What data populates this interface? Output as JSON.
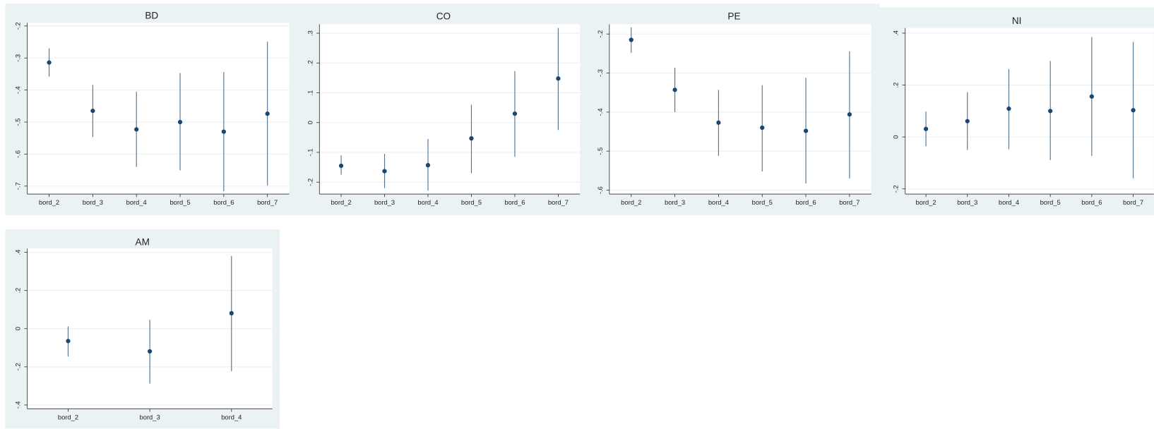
{
  "chart_data": [
    {
      "type": "errorbar",
      "title": "BD",
      "categories": [
        "bord_2",
        "bord_3",
        "bord_4",
        "bord_5",
        "bord_6",
        "bord_7"
      ],
      "values": [
        -0.314,
        -0.465,
        -0.523,
        -0.5,
        -0.53,
        -0.474
      ],
      "lower": [
        -0.358,
        -0.547,
        -0.64,
        -0.651,
        -0.716,
        -0.698
      ],
      "upper": [
        -0.27,
        -0.384,
        -0.405,
        -0.347,
        -0.344,
        -0.249
      ],
      "ylim": [
        -0.725,
        -0.19
      ],
      "yticks": [
        {
          "value": -0.2,
          "label": "-.2"
        },
        {
          "value": -0.3,
          "label": "-.3"
        },
        {
          "value": -0.4,
          "label": "-.4"
        },
        {
          "value": -0.5,
          "label": "-.5"
        },
        {
          "value": -0.6,
          "label": "-.6"
        },
        {
          "value": -0.7,
          "label": "-.7"
        }
      ],
      "color": "#1a476f",
      "grid": true
    },
    {
      "type": "errorbar",
      "title": "CO",
      "categories": [
        "bord_2",
        "bord_3",
        "bord_4",
        "bord_5",
        "bord_6",
        "bord_7"
      ],
      "values": [
        -0.145,
        -0.163,
        -0.143,
        -0.053,
        0.03,
        0.148
      ],
      "lower": [
        -0.175,
        -0.22,
        -0.228,
        -0.17,
        -0.115,
        -0.025
      ],
      "upper": [
        -0.11,
        -0.105,
        -0.055,
        0.06,
        0.173,
        0.318
      ],
      "ylim": [
        -0.24,
        0.33
      ],
      "yticks": [
        {
          "value": 0.3,
          "label": ".3"
        },
        {
          "value": 0.2,
          "label": ".2"
        },
        {
          "value": 0.1,
          "label": ".1"
        },
        0,
        {
          "value": -0.1,
          "label": "-.1"
        },
        {
          "value": -0.2,
          "label": "-.2"
        }
      ],
      "color": "#1a476f",
      "grid": true
    },
    {
      "type": "errorbar",
      "title": "PE",
      "categories": [
        "bord_2",
        "bord_3",
        "bord_4",
        "bord_5",
        "bord_6",
        "bord_7"
      ],
      "values": [
        -0.215,
        -0.343,
        -0.427,
        -0.44,
        -0.448,
        -0.406
      ],
      "lower": [
        -0.248,
        -0.4,
        -0.512,
        -0.552,
        -0.583,
        -0.57
      ],
      "upper": [
        -0.183,
        -0.286,
        -0.343,
        -0.331,
        -0.312,
        -0.244
      ],
      "ylim": [
        -0.61,
        -0.175
      ],
      "yticks": [
        {
          "value": -0.2,
          "label": "-.2"
        },
        {
          "value": -0.3,
          "label": "-.3"
        },
        {
          "value": -0.4,
          "label": "-.4"
        },
        {
          "value": -0.5,
          "label": "-.5"
        },
        {
          "value": -0.6,
          "label": "-.6"
        }
      ],
      "color": "#1a476f",
      "grid": true
    },
    {
      "type": "errorbar",
      "title": "NI",
      "categories": [
        "bord_2",
        "bord_3",
        "bord_4",
        "bord_5",
        "bord_6",
        "bord_7"
      ],
      "values": [
        0.031,
        0.061,
        0.109,
        0.1,
        0.156,
        0.103
      ],
      "lower": [
        -0.036,
        -0.05,
        -0.047,
        -0.089,
        -0.073,
        -0.159
      ],
      "upper": [
        0.098,
        0.173,
        0.262,
        0.293,
        0.385,
        0.366
      ],
      "ylim": [
        -0.22,
        0.42
      ],
      "yticks": [
        {
          "value": 0.4,
          "label": ".4"
        },
        {
          "value": 0.2,
          "label": ".2"
        },
        0,
        {
          "value": -0.2,
          "label": "-.2"
        }
      ],
      "color": "#1a476f",
      "grid": true
    },
    {
      "type": "errorbar",
      "title": "AM",
      "categories": [
        "bord_2",
        "bord_3",
        "bord_4"
      ],
      "values": [
        -0.065,
        -0.119,
        0.081
      ],
      "lower": [
        -0.146,
        -0.288,
        -0.223
      ],
      "upper": [
        0.012,
        0.046,
        0.381
      ],
      "ylim": [
        -0.42,
        0.42
      ],
      "yticks": [
        {
          "value": 0.4,
          "label": ".4"
        },
        {
          "value": 0.2,
          "label": ".2"
        },
        0,
        {
          "value": -0.2,
          "label": "-.2"
        },
        {
          "value": -0.4,
          "label": "-.4"
        }
      ],
      "color": "#1a476f",
      "grid": true
    }
  ]
}
